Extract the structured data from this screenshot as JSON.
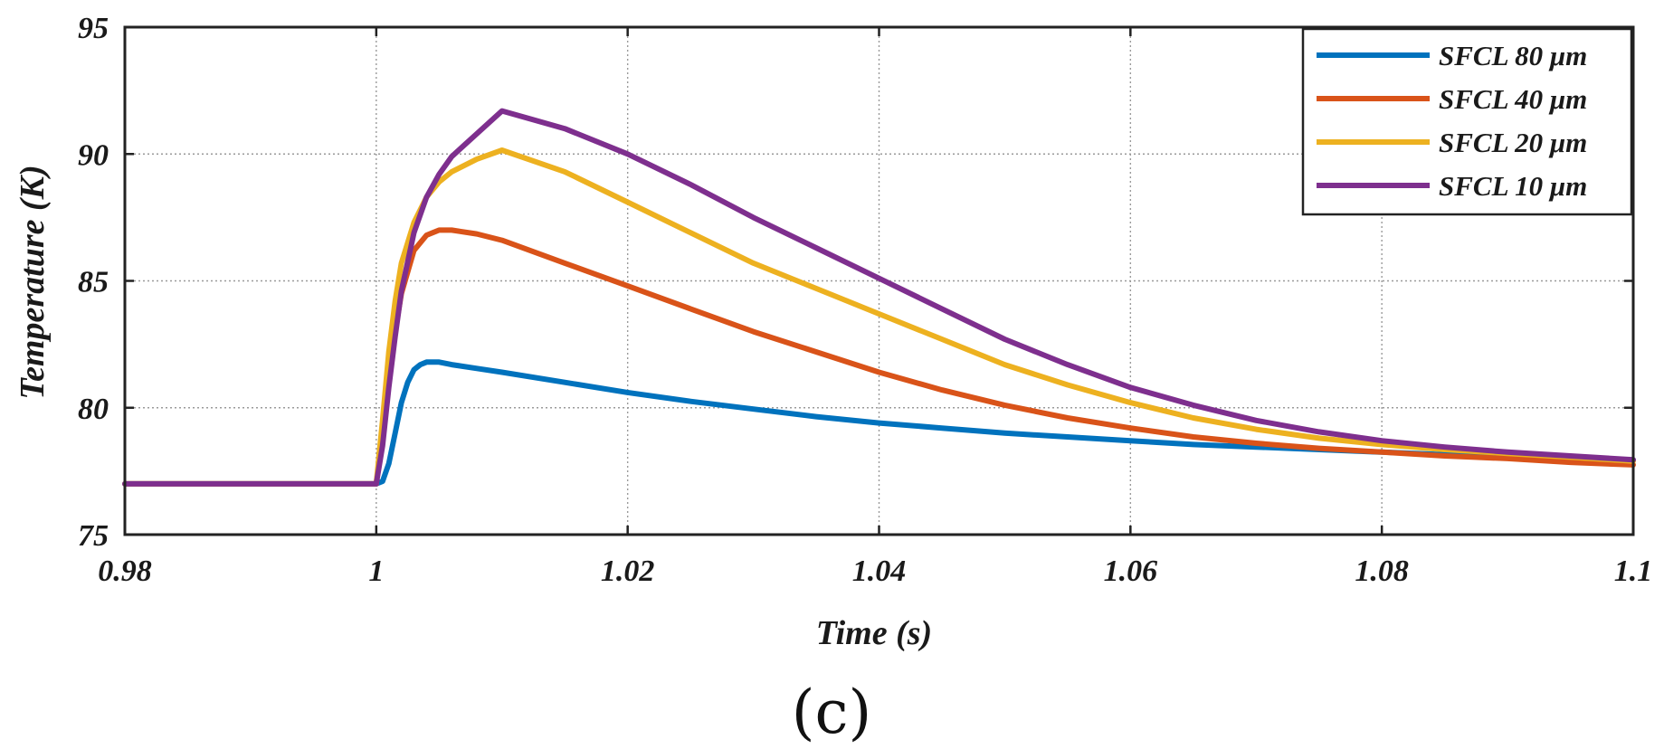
{
  "chart_data": {
    "type": "line",
    "title": "",
    "xlabel": "Time (s)",
    "ylabel": "Temperature (K)",
    "xlim": [
      0.98,
      1.1
    ],
    "ylim": [
      75,
      95
    ],
    "grid": true,
    "xticks": [
      0.98,
      1,
      1.02,
      1.04,
      1.06,
      1.08,
      1.1
    ],
    "xtick_labels": [
      "0.98",
      "1",
      "1.02",
      "1.04",
      "1.06",
      "1.08",
      "1.1"
    ],
    "yticks": [
      75,
      80,
      85,
      90,
      95
    ],
    "ytick_labels": [
      "75",
      "80",
      "85",
      "90",
      "95"
    ],
    "legend_position": "top-right",
    "panel_label": "(c)",
    "series": [
      {
        "name": "SFCL 80 μm",
        "color": "#0072BD",
        "x": [
          0.98,
          1.0,
          1.0005,
          1.001,
          1.0015,
          1.002,
          1.0025,
          1.003,
          1.0035,
          1.004,
          1.005,
          1.006,
          1.008,
          1.01,
          1.015,
          1.02,
          1.025,
          1.03,
          1.035,
          1.04,
          1.045,
          1.05,
          1.055,
          1.06,
          1.065,
          1.07,
          1.075,
          1.08,
          1.085,
          1.09,
          1.095,
          1.1
        ],
        "y": [
          77.0,
          77.0,
          77.1,
          77.8,
          79.0,
          80.2,
          81.0,
          81.5,
          81.7,
          81.8,
          81.8,
          81.7,
          81.55,
          81.4,
          81.0,
          80.6,
          80.25,
          79.95,
          79.65,
          79.4,
          79.2,
          79.0,
          78.85,
          78.7,
          78.55,
          78.45,
          78.35,
          78.25,
          78.15,
          78.1,
          78.0,
          77.95
        ]
      },
      {
        "name": "SFCL 40 μm",
        "color": "#D95319",
        "x": [
          0.98,
          1.0,
          1.0005,
          1.001,
          1.0015,
          1.002,
          1.003,
          1.004,
          1.005,
          1.006,
          1.008,
          1.01,
          1.015,
          1.02,
          1.025,
          1.03,
          1.035,
          1.04,
          1.045,
          1.05,
          1.055,
          1.06,
          1.065,
          1.07,
          1.075,
          1.08,
          1.085,
          1.09,
          1.095,
          1.1
        ],
        "y": [
          77.0,
          77.0,
          78.8,
          81.0,
          83.0,
          84.5,
          86.2,
          86.8,
          87.0,
          87.0,
          86.85,
          86.6,
          85.7,
          84.8,
          83.9,
          83.0,
          82.2,
          81.4,
          80.7,
          80.1,
          79.6,
          79.2,
          78.85,
          78.6,
          78.4,
          78.25,
          78.1,
          78.0,
          77.85,
          77.75
        ]
      },
      {
        "name": "SFCL 20 μm",
        "color": "#EDB120",
        "x": [
          0.98,
          1.0,
          1.0005,
          1.001,
          1.0015,
          1.002,
          1.003,
          1.004,
          1.005,
          1.006,
          1.008,
          1.01,
          1.015,
          1.02,
          1.025,
          1.03,
          1.035,
          1.04,
          1.045,
          1.05,
          1.055,
          1.06,
          1.065,
          1.07,
          1.075,
          1.08,
          1.085,
          1.09,
          1.095,
          1.1
        ],
        "y": [
          77.0,
          77.0,
          79.5,
          82.2,
          84.2,
          85.7,
          87.3,
          88.3,
          88.9,
          89.3,
          89.8,
          90.15,
          89.3,
          88.1,
          86.9,
          85.7,
          84.7,
          83.7,
          82.7,
          81.7,
          80.9,
          80.2,
          79.6,
          79.15,
          78.8,
          78.55,
          78.35,
          78.2,
          78.05,
          77.9
        ]
      },
      {
        "name": "SFCL 10 μm",
        "color": "#7E2F8E",
        "x": [
          0.98,
          1.0,
          1.0005,
          1.001,
          1.0015,
          1.002,
          1.003,
          1.004,
          1.005,
          1.006,
          1.008,
          1.01,
          1.015,
          1.02,
          1.025,
          1.03,
          1.035,
          1.04,
          1.045,
          1.05,
          1.055,
          1.06,
          1.065,
          1.07,
          1.075,
          1.08,
          1.085,
          1.09,
          1.095,
          1.1
        ],
        "y": [
          77.0,
          77.0,
          78.5,
          80.8,
          82.8,
          84.6,
          86.9,
          88.3,
          89.2,
          89.9,
          90.8,
          91.7,
          91.0,
          90.0,
          88.8,
          87.5,
          86.3,
          85.1,
          83.9,
          82.7,
          81.7,
          80.8,
          80.1,
          79.5,
          79.05,
          78.7,
          78.45,
          78.25,
          78.1,
          77.95
        ]
      }
    ]
  }
}
